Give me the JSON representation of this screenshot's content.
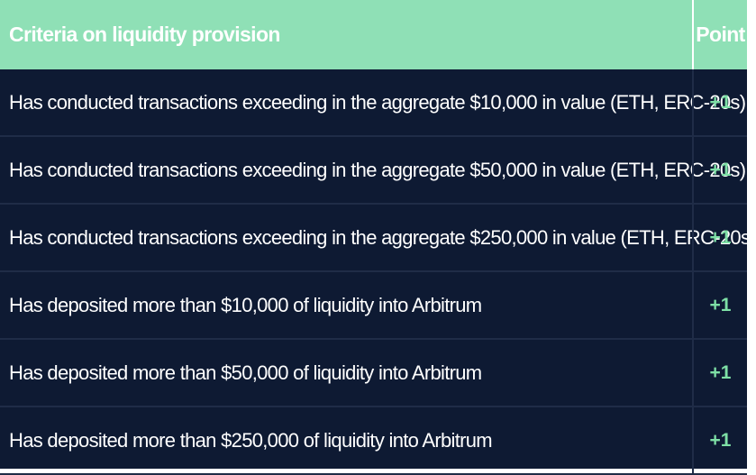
{
  "table": {
    "header": {
      "criteria": "Criteria on liquidity provision",
      "point": "Point"
    },
    "rows": [
      {
        "criteria": "Has conducted transactions exceeding in the aggregate $10,000 in value (ETH, ERC-20s)",
        "point": "+1"
      },
      {
        "criteria": "Has conducted transactions exceeding in the aggregate $50,000 in value (ETH,  ERC-20s)",
        "point": "+1"
      },
      {
        "criteria": "Has conducted transactions exceeding in the aggregate $250,000 in value (ETH, ERC-20s)",
        "point": "+1"
      },
      {
        "criteria": "Has deposited more than $10,000 of liquidity into Arbitrum",
        "point": "+1"
      },
      {
        "criteria": "Has deposited more than $50,000 of liquidity into Arbitrum",
        "point": "+1"
      },
      {
        "criteria": "Has deposited more than $250,000 of liquidity into Arbitrum",
        "point": "+1"
      }
    ]
  },
  "colors": {
    "header_bg": "#8fe0b6",
    "row_bg": "#0e1a33",
    "point_green": "#7ee0a6"
  }
}
